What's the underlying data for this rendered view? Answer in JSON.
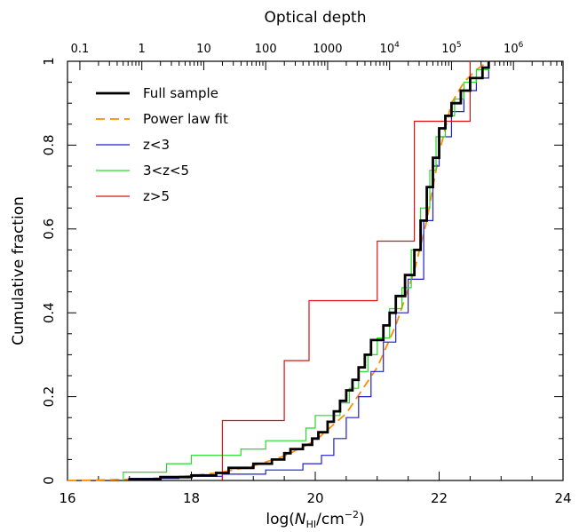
{
  "chart_data": {
    "type": "line",
    "title": "",
    "xlabel": "log(N_HI/cm^-2)",
    "ylabel": "Cumulative fraction",
    "top_xlabel": "Optical depth",
    "xlim": [
      16,
      24
    ],
    "ylim": [
      0,
      1
    ],
    "x_ticks": [
      "16",
      "18",
      "20",
      "22",
      "24"
    ],
    "y_ticks": [
      "0",
      "0.2",
      "0.4",
      "0.6",
      "0.8",
      "1"
    ],
    "top_ticks": [
      {
        "label": "0.1",
        "log_n": 16.2
      },
      {
        "label": "1",
        "log_n": 17.2
      },
      {
        "label": "10",
        "log_n": 18.2
      },
      {
        "label": "100",
        "log_n": 19.2
      },
      {
        "label": "1000",
        "log_n": 20.2
      },
      {
        "label": "10^4",
        "log_n": 21.2
      },
      {
        "label": "10^5",
        "log_n": 22.2
      },
      {
        "label": "10^6",
        "log_n": 23.2
      }
    ],
    "legend_position": "top-left",
    "series": [
      {
        "name": "Full sample",
        "color": "#000000",
        "style": "step",
        "points": [
          [
            17.0,
            0.0
          ],
          [
            17.0,
            0.003
          ],
          [
            17.5,
            0.003
          ],
          [
            17.5,
            0.008
          ],
          [
            18.0,
            0.008
          ],
          [
            18.0,
            0.012
          ],
          [
            18.4,
            0.012
          ],
          [
            18.4,
            0.018
          ],
          [
            18.6,
            0.018
          ],
          [
            18.6,
            0.03
          ],
          [
            19.0,
            0.03
          ],
          [
            19.0,
            0.04
          ],
          [
            19.3,
            0.04
          ],
          [
            19.3,
            0.05
          ],
          [
            19.5,
            0.05
          ],
          [
            19.5,
            0.065
          ],
          [
            19.6,
            0.065
          ],
          [
            19.6,
            0.075
          ],
          [
            19.8,
            0.075
          ],
          [
            19.8,
            0.085
          ],
          [
            19.95,
            0.085
          ],
          [
            19.95,
            0.1
          ],
          [
            20.05,
            0.1
          ],
          [
            20.05,
            0.115
          ],
          [
            20.2,
            0.115
          ],
          [
            20.2,
            0.14
          ],
          [
            20.3,
            0.14
          ],
          [
            20.3,
            0.165
          ],
          [
            20.4,
            0.165
          ],
          [
            20.4,
            0.19
          ],
          [
            20.5,
            0.19
          ],
          [
            20.5,
            0.215
          ],
          [
            20.6,
            0.215
          ],
          [
            20.6,
            0.24
          ],
          [
            20.7,
            0.24
          ],
          [
            20.7,
            0.27
          ],
          [
            20.8,
            0.27
          ],
          [
            20.8,
            0.3
          ],
          [
            20.9,
            0.3
          ],
          [
            20.9,
            0.335
          ],
          [
            21.1,
            0.335
          ],
          [
            21.1,
            0.37
          ],
          [
            21.2,
            0.37
          ],
          [
            21.2,
            0.4
          ],
          [
            21.3,
            0.4
          ],
          [
            21.3,
            0.44
          ],
          [
            21.45,
            0.44
          ],
          [
            21.45,
            0.49
          ],
          [
            21.6,
            0.49
          ],
          [
            21.6,
            0.55
          ],
          [
            21.7,
            0.55
          ],
          [
            21.7,
            0.62
          ],
          [
            21.8,
            0.62
          ],
          [
            21.8,
            0.7
          ],
          [
            21.9,
            0.7
          ],
          [
            21.9,
            0.77
          ],
          [
            22.0,
            0.77
          ],
          [
            22.0,
            0.84
          ],
          [
            22.1,
            0.84
          ],
          [
            22.1,
            0.87
          ],
          [
            22.2,
            0.87
          ],
          [
            22.2,
            0.9
          ],
          [
            22.35,
            0.9
          ],
          [
            22.35,
            0.93
          ],
          [
            22.5,
            0.93
          ],
          [
            22.5,
            0.96
          ],
          [
            22.7,
            0.96
          ],
          [
            22.7,
            0.985
          ],
          [
            22.8,
            0.985
          ],
          [
            22.8,
            1.0
          ]
        ]
      },
      {
        "name": "Power law fit",
        "color": "#ff8c00",
        "style": "dashed",
        "points": [
          [
            16.0,
            0.0
          ],
          [
            16.5,
            0.001
          ],
          [
            17.0,
            0.003
          ],
          [
            17.5,
            0.006
          ],
          [
            18.0,
            0.011
          ],
          [
            18.5,
            0.02
          ],
          [
            19.0,
            0.035
          ],
          [
            19.5,
            0.058
          ],
          [
            20.0,
            0.095
          ],
          [
            20.5,
            0.16
          ],
          [
            21.0,
            0.27
          ],
          [
            21.3,
            0.37
          ],
          [
            21.6,
            0.5
          ],
          [
            21.8,
            0.62
          ],
          [
            22.0,
            0.78
          ],
          [
            22.2,
            0.9
          ],
          [
            22.4,
            0.95
          ],
          [
            22.6,
            0.98
          ],
          [
            22.8,
            1.0
          ]
        ]
      },
      {
        "name": "z<3",
        "color": "#1f1fd0",
        "style": "step",
        "points": [
          [
            17.0,
            0.0
          ],
          [
            17.0,
            0.005
          ],
          [
            17.8,
            0.005
          ],
          [
            17.8,
            0.01
          ],
          [
            18.5,
            0.01
          ],
          [
            18.5,
            0.015
          ],
          [
            19.2,
            0.015
          ],
          [
            19.2,
            0.025
          ],
          [
            19.8,
            0.025
          ],
          [
            19.8,
            0.04
          ],
          [
            20.1,
            0.04
          ],
          [
            20.1,
            0.06
          ],
          [
            20.3,
            0.06
          ],
          [
            20.3,
            0.1
          ],
          [
            20.5,
            0.1
          ],
          [
            20.5,
            0.15
          ],
          [
            20.7,
            0.15
          ],
          [
            20.7,
            0.2
          ],
          [
            20.9,
            0.2
          ],
          [
            20.9,
            0.26
          ],
          [
            21.1,
            0.26
          ],
          [
            21.1,
            0.33
          ],
          [
            21.3,
            0.33
          ],
          [
            21.3,
            0.4
          ],
          [
            21.5,
            0.4
          ],
          [
            21.5,
            0.48
          ],
          [
            21.75,
            0.48
          ],
          [
            21.75,
            0.62
          ],
          [
            21.9,
            0.62
          ],
          [
            21.9,
            0.75
          ],
          [
            22.0,
            0.75
          ],
          [
            22.0,
            0.82
          ],
          [
            22.2,
            0.82
          ],
          [
            22.2,
            0.88
          ],
          [
            22.4,
            0.88
          ],
          [
            22.4,
            0.93
          ],
          [
            22.6,
            0.93
          ],
          [
            22.6,
            0.96
          ],
          [
            22.8,
            0.96
          ],
          [
            22.8,
            1.0
          ]
        ]
      },
      {
        "name": "3<z<5",
        "color": "#22dd22",
        "style": "step",
        "points": [
          [
            16.9,
            0.0
          ],
          [
            16.9,
            0.02
          ],
          [
            17.6,
            0.02
          ],
          [
            17.6,
            0.04
          ],
          [
            18.0,
            0.04
          ],
          [
            18.0,
            0.06
          ],
          [
            18.8,
            0.06
          ],
          [
            18.8,
            0.075
          ],
          [
            19.2,
            0.075
          ],
          [
            19.2,
            0.095
          ],
          [
            19.85,
            0.095
          ],
          [
            19.85,
            0.125
          ],
          [
            20.0,
            0.125
          ],
          [
            20.0,
            0.155
          ],
          [
            20.4,
            0.155
          ],
          [
            20.4,
            0.185
          ],
          [
            20.55,
            0.185
          ],
          [
            20.55,
            0.22
          ],
          [
            20.7,
            0.22
          ],
          [
            20.7,
            0.26
          ],
          [
            20.85,
            0.26
          ],
          [
            20.85,
            0.3
          ],
          [
            21.0,
            0.3
          ],
          [
            21.0,
            0.34
          ],
          [
            21.2,
            0.34
          ],
          [
            21.2,
            0.41
          ],
          [
            21.4,
            0.41
          ],
          [
            21.4,
            0.46
          ],
          [
            21.55,
            0.46
          ],
          [
            21.55,
            0.55
          ],
          [
            21.7,
            0.55
          ],
          [
            21.7,
            0.65
          ],
          [
            21.85,
            0.65
          ],
          [
            21.85,
            0.74
          ],
          [
            21.95,
            0.74
          ],
          [
            21.95,
            0.82
          ],
          [
            22.1,
            0.82
          ],
          [
            22.1,
            0.87
          ],
          [
            22.25,
            0.87
          ],
          [
            22.25,
            0.91
          ],
          [
            22.4,
            0.91
          ],
          [
            22.4,
            0.95
          ],
          [
            22.6,
            0.95
          ],
          [
            22.6,
            0.98
          ],
          [
            22.8,
            0.98
          ],
          [
            22.8,
            1.0
          ]
        ]
      },
      {
        "name": "z>5",
        "color": "#dd1111",
        "style": "step",
        "points": [
          [
            18.5,
            0.0
          ],
          [
            18.5,
            0.143
          ],
          [
            19.5,
            0.143
          ],
          [
            19.5,
            0.286
          ],
          [
            19.9,
            0.286
          ],
          [
            19.9,
            0.429
          ],
          [
            21.0,
            0.429
          ],
          [
            21.0,
            0.571
          ],
          [
            21.6,
            0.571
          ],
          [
            21.6,
            0.857
          ],
          [
            22.5,
            0.857
          ],
          [
            22.5,
            1.0
          ]
        ]
      }
    ]
  }
}
